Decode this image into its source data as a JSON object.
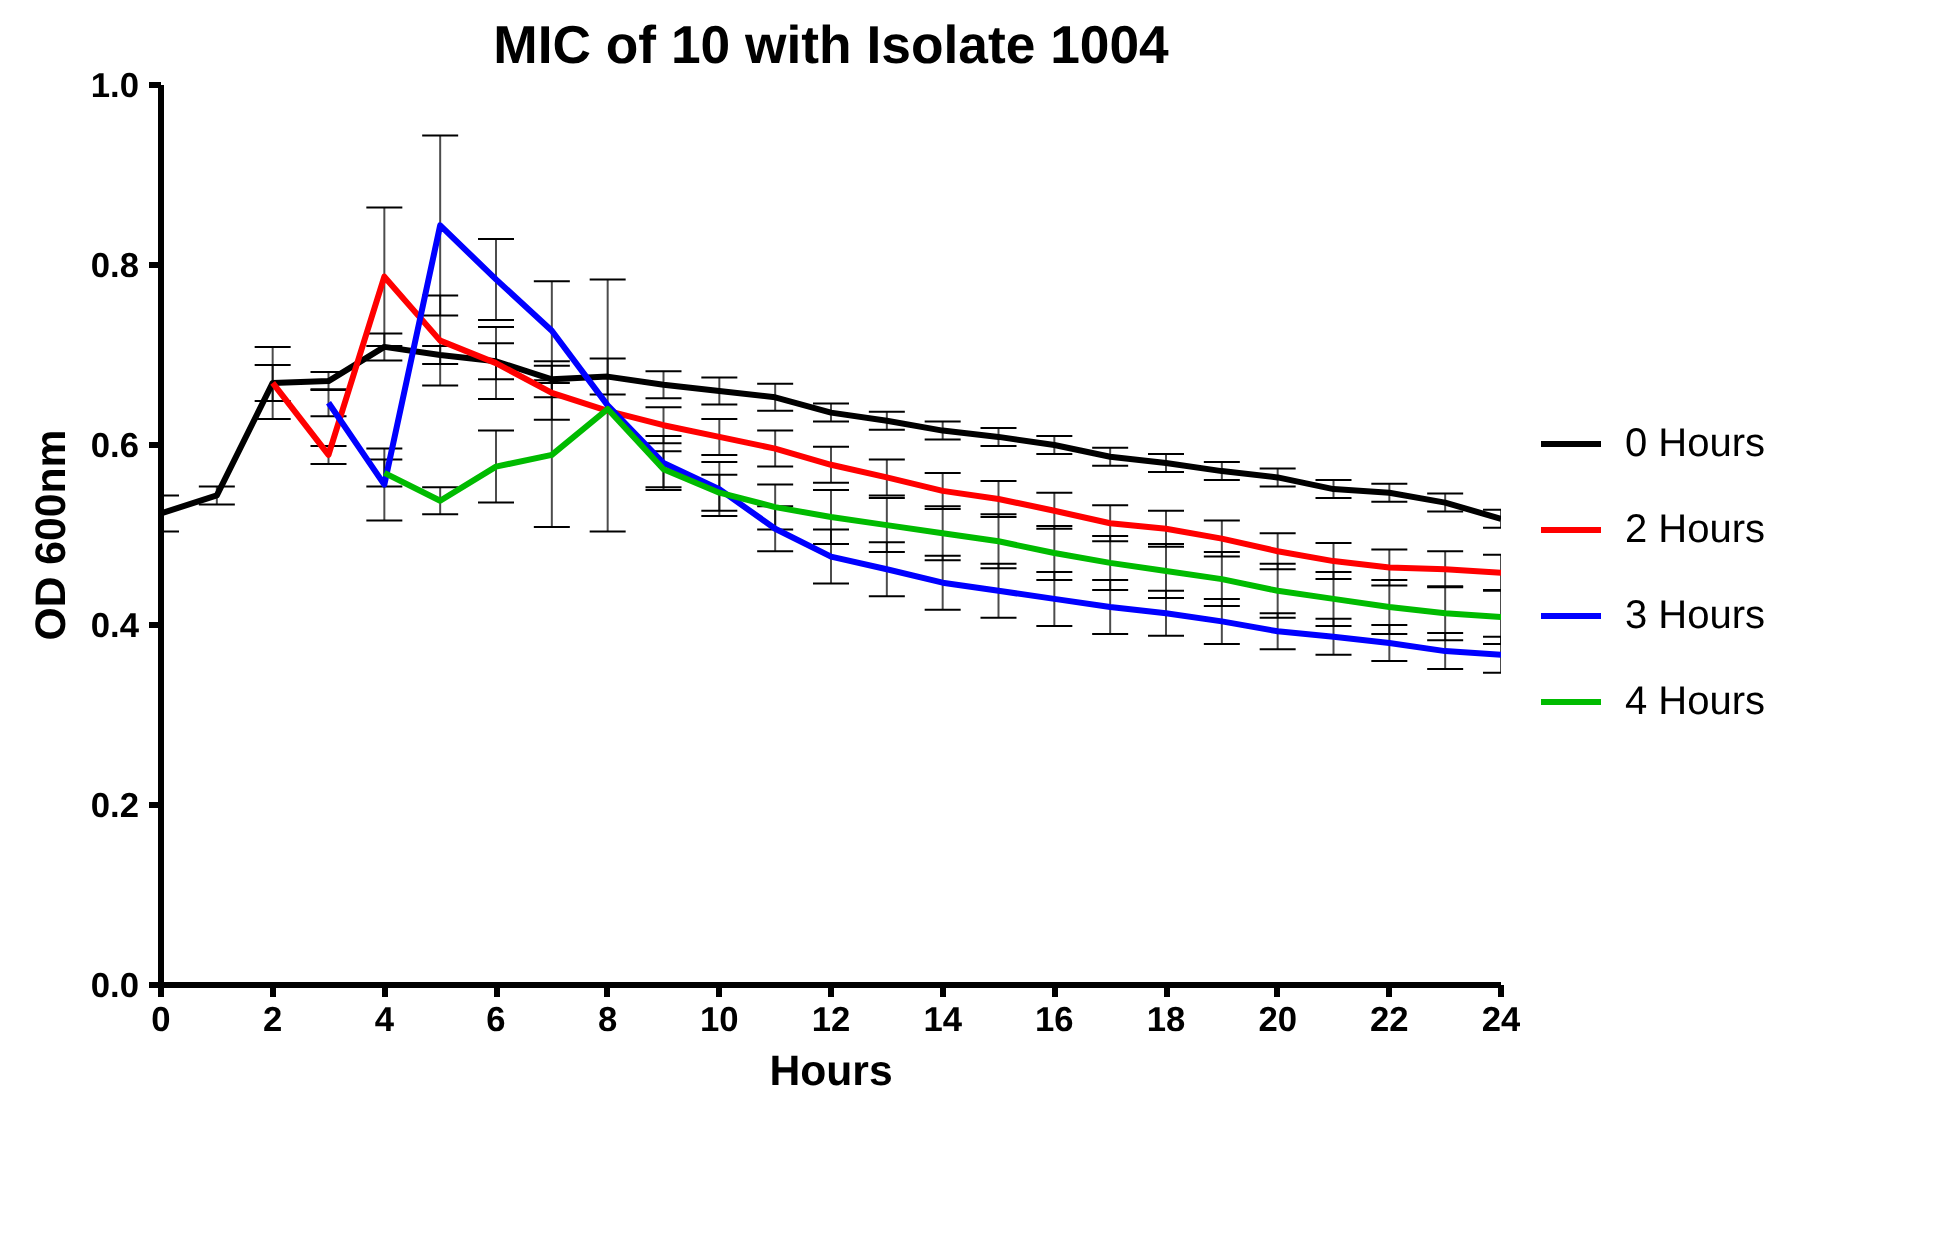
{
  "chart_data": {
    "type": "line",
    "title": "MIC of 10 with Isolate 1004",
    "xlabel": "Hours",
    "ylabel": "OD 600nm",
    "x": [
      0,
      1,
      2,
      3,
      4,
      5,
      6,
      7,
      8,
      9,
      10,
      11,
      12,
      13,
      14,
      15,
      16,
      17,
      18,
      19,
      20,
      21,
      22,
      23,
      24
    ],
    "xlim": [
      0,
      24
    ],
    "xticks": [
      0,
      2,
      4,
      6,
      8,
      10,
      12,
      14,
      16,
      18,
      20,
      22,
      24
    ],
    "ylim": [
      0,
      1.0
    ],
    "yticks": [
      {
        "value": 0,
        "label": "0.0"
      },
      0.2,
      0.4,
      0.6,
      0.8,
      {
        "value": 1.0,
        "label": "1.0"
      }
    ],
    "grid": false,
    "legend": "right",
    "marker": "none",
    "line_style": "solid",
    "series": [
      {
        "name": "0 Hours",
        "color": "#000000",
        "values": [
          0.524,
          0.544,
          0.669,
          0.671,
          0.709,
          0.7,
          0.693,
          0.673,
          0.676,
          0.667,
          0.66,
          0.653,
          0.636,
          0.627,
          0.616,
          0.609,
          0.6,
          0.587,
          0.58,
          0.571,
          0.564,
          0.551,
          0.547,
          0.536,
          0.518
        ],
        "errors": [
          0.02,
          0.01,
          0.04,
          0.01,
          0.015,
          0.01,
          0.02,
          0.02,
          0.02,
          0.015,
          0.015,
          0.015,
          0.01,
          0.01,
          0.01,
          0.01,
          0.01,
          0.01,
          0.01,
          0.01,
          0.01,
          0.01,
          0.01,
          0.01,
          0.01
        ]
      },
      {
        "name": "2 Hours",
        "color": "#ff0000",
        "values": [
          null,
          null,
          0.669,
          0.589,
          0.787,
          0.716,
          0.691,
          0.658,
          0.638,
          0.622,
          0.609,
          0.596,
          0.578,
          0.564,
          0.549,
          0.54,
          0.527,
          0.513,
          0.507,
          0.496,
          0.482,
          0.471,
          0.464,
          0.462,
          0.458
        ],
        "errors": [
          null,
          null,
          0.02,
          0.01,
          0.077,
          0.05,
          0.04,
          0.03,
          null,
          0.02,
          0.02,
          0.02,
          0.02,
          0.02,
          0.02,
          0.02,
          0.02,
          0.02,
          0.02,
          0.02,
          0.02,
          0.02,
          0.02,
          0.02,
          0.02
        ]
      },
      {
        "name": "3 Hours",
        "color": "#0000ff",
        "values": [
          null,
          null,
          null,
          0.647,
          0.556,
          0.844,
          0.784,
          0.727,
          0.644,
          0.58,
          0.551,
          0.507,
          0.476,
          0.462,
          0.447,
          0.438,
          0.429,
          0.42,
          0.413,
          0.404,
          0.393,
          0.387,
          0.38,
          0.371,
          0.367
        ],
        "errors": [
          null,
          null,
          null,
          0.015,
          0.04,
          0.1,
          0.045,
          0.055,
          0.14,
          0.03,
          0.03,
          0.025,
          0.03,
          0.03,
          0.03,
          0.03,
          0.03,
          0.03,
          0.025,
          0.025,
          0.02,
          0.02,
          0.02,
          0.02,
          0.02
        ]
      },
      {
        "name": "4 Hours",
        "color": "#00bb00",
        "values": [
          null,
          null,
          null,
          null,
          0.569,
          0.538,
          0.576,
          0.589,
          0.64,
          0.573,
          0.547,
          0.531,
          0.52,
          0.511,
          0.502,
          0.493,
          0.48,
          0.469,
          0.46,
          0.451,
          0.438,
          0.429,
          0.42,
          0.413,
          0.409
        ],
        "errors": [
          null,
          null,
          null,
          null,
          0.015,
          0.015,
          0.04,
          0.08,
          null,
          0.02,
          0.02,
          0.025,
          0.03,
          0.03,
          0.03,
          0.03,
          0.03,
          0.03,
          0.03,
          0.03,
          0.03,
          0.03,
          0.03,
          0.03,
          0.03
        ]
      }
    ]
  }
}
